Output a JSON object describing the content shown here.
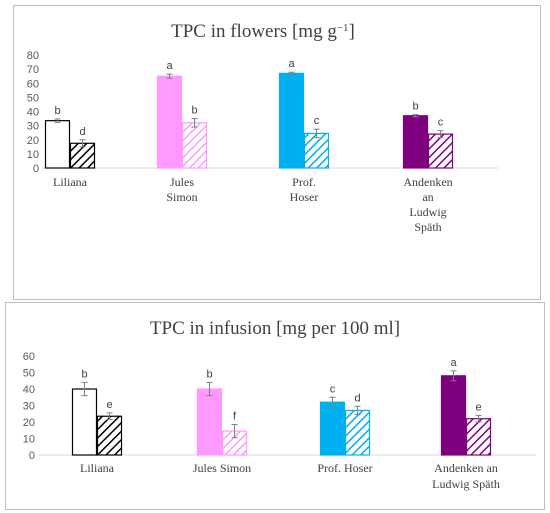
{
  "chart_data": [
    {
      "type": "bar",
      "title": "TPC in flowers [mg g",
      "title_sup": "−1",
      "title_end": "]",
      "ylim": [
        0,
        80
      ],
      "yticks": [
        0,
        10,
        20,
        30,
        40,
        50,
        60,
        70,
        80
      ],
      "grid": false,
      "categories": [
        [
          "Liliana"
        ],
        [
          "Jules",
          "Simon"
        ],
        [
          "Prof.",
          "Hoser"
        ],
        [
          "Andenken",
          "an",
          "Ludwig",
          "Späth"
        ]
      ],
      "colors": [
        "#ffffff",
        "#ff99ff",
        "#00b0f0",
        "#7f007f"
      ],
      "series": [
        {
          "values": [
            33.5,
            65,
            67,
            37
          ],
          "errors": [
            1.2,
            1.5,
            0.8,
            0.8
          ],
          "letters": [
            "b",
            "a",
            "a",
            "b"
          ],
          "pattern": "solid"
        },
        {
          "values": [
            17.5,
            32,
            24.5,
            24
          ],
          "errors": [
            2.5,
            3,
            3,
            2.5
          ],
          "letters": [
            "d",
            "b",
            "c",
            "c"
          ],
          "pattern": "hatched"
        }
      ]
    },
    {
      "type": "bar",
      "title": "TPC in infusion [mg per 100 ml]",
      "ylim": [
        0,
        60
      ],
      "yticks": [
        0,
        10,
        20,
        30,
        40,
        50,
        60
      ],
      "grid": false,
      "categories": [
        [
          "Liliana"
        ],
        [
          "Jules Simon"
        ],
        [
          "Prof. Hoser"
        ],
        [
          "Andenken an",
          "Ludwig Späth"
        ]
      ],
      "colors": [
        "#ffffff",
        "#ff99ff",
        "#00b0f0",
        "#7f007f"
      ],
      "series": [
        {
          "values": [
            40,
            40,
            32,
            48
          ],
          "errors": [
            4,
            4,
            3,
            3
          ],
          "letters": [
            "b",
            "b",
            "c",
            "a"
          ],
          "pattern": "solid"
        },
        {
          "values": [
            23.5,
            14.5,
            27,
            22
          ],
          "errors": [
            2,
            4,
            2.5,
            2
          ],
          "letters": [
            "e",
            "f",
            "d",
            "e"
          ],
          "pattern": "hatched"
        }
      ]
    }
  ]
}
